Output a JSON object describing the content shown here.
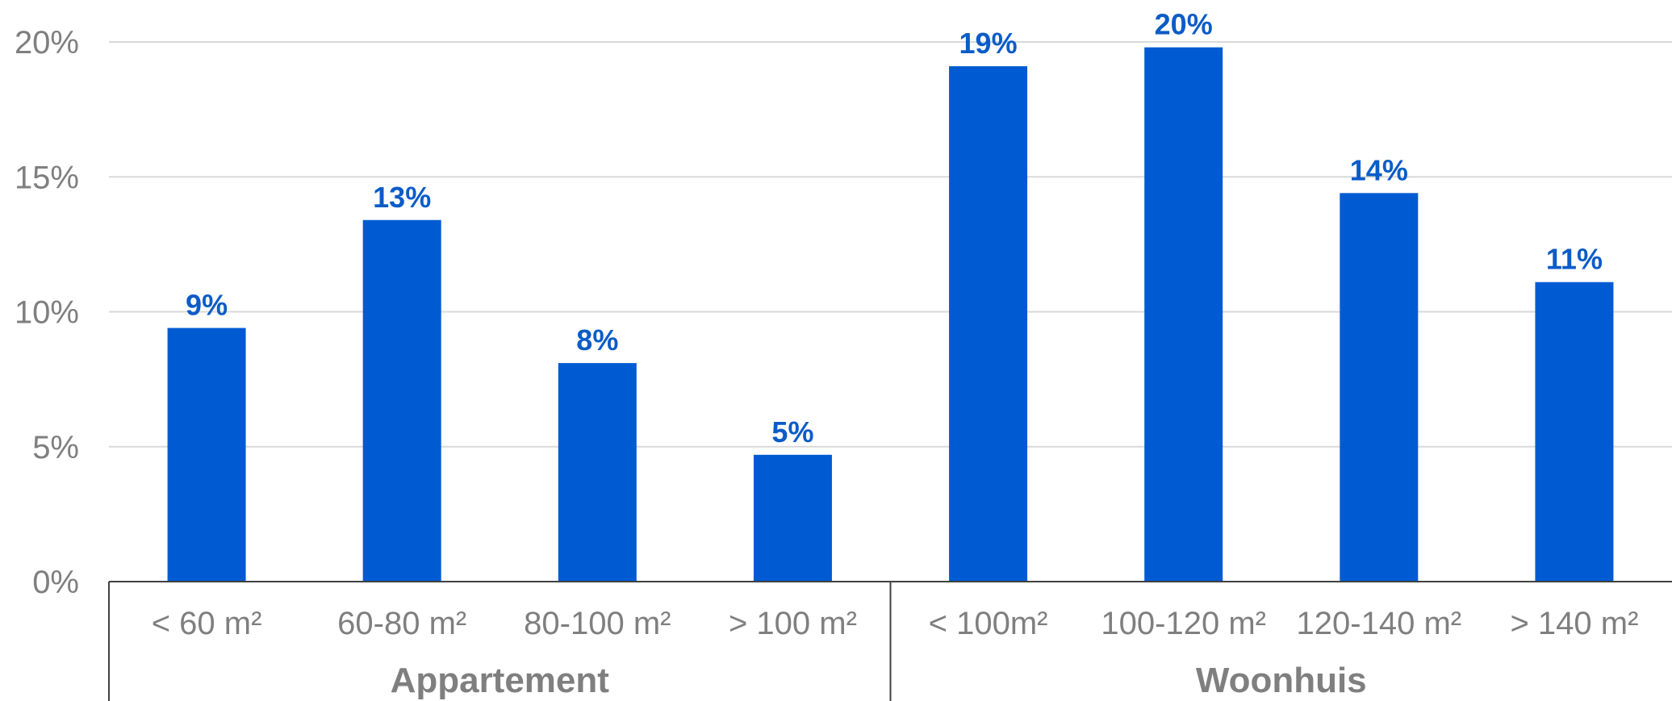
{
  "chart_data": {
    "type": "bar",
    "title": "",
    "xlabel": "",
    "ylabel": "",
    "ylim": [
      0,
      20
    ],
    "yticks": [
      0,
      5,
      10,
      15,
      20
    ],
    "ytick_labels": [
      "0%",
      "5%",
      "10%",
      "15%",
      "20%"
    ],
    "grid": true,
    "legend": "none",
    "bar_color": "#005BD3",
    "label_color": "#0B5CC7",
    "categories": [
      "< 60 m²",
      "60-80 m²",
      "80-100 m²",
      "> 100 m²",
      "< 100m²",
      "100-120 m²",
      "120-140 m²",
      "> 140 m²"
    ],
    "groups": [
      {
        "label": "Appartement",
        "count": 4
      },
      {
        "label": "Woonhuis",
        "count": 4
      }
    ],
    "values": [
      9.4,
      13.4,
      8.1,
      4.7,
      19.1,
      19.8,
      14.4,
      11.1
    ],
    "data_labels": [
      "9%",
      "13%",
      "8%",
      "5%",
      "19%",
      "20%",
      "14%",
      "11%"
    ]
  }
}
